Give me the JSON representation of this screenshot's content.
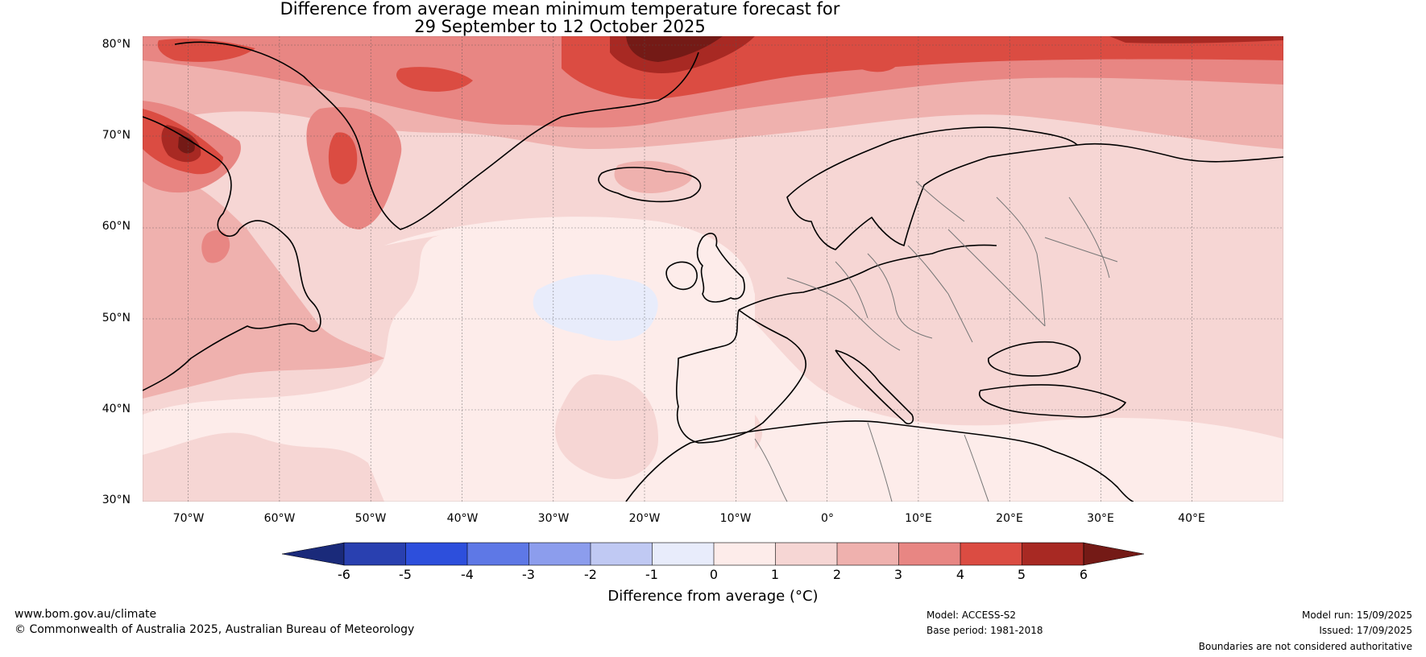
{
  "title": {
    "line1": "Difference from average mean minimum temperature forecast for",
    "line2": "29 September to 12 October 2025"
  },
  "map": {
    "projection": "equirectangular",
    "lon_range": [
      -75,
      50
    ],
    "lat_range": [
      30,
      81
    ],
    "lat_labels": [
      "30°N",
      "40°N",
      "50°N",
      "60°N",
      "70°N",
      "80°N"
    ],
    "lon_labels": [
      "70°W",
      "60°W",
      "50°W",
      "40°W",
      "30°W",
      "20°W",
      "10°W",
      "0°",
      "10°E",
      "20°E",
      "30°E",
      "40°E"
    ],
    "gridlines": true
  },
  "colorbar": {
    "ticks": [
      "-6",
      "-5",
      "-4",
      "-3",
      "-2",
      "-1",
      "0",
      "1",
      "2",
      "3",
      "4",
      "5",
      "6"
    ],
    "label": "Difference from average (°C)",
    "colors": {
      "lt_-6": "#1a2a7a",
      "-6_-5": "#2940b0",
      "-5_-4": "#2d4fdc",
      "-4_-3": "#5e78e6",
      "-3_-2": "#8c9ded",
      "-2_-1": "#c0c9f3",
      "-1_0": "#e8ecfb",
      "0_1": "#fdecea",
      "1_2": "#f6d6d4",
      "2_3": "#efb1ae",
      "3_4": "#e88683",
      "4_5": "#db4c42",
      "5_6": "#a82923",
      "gt_6": "#741a16"
    }
  },
  "footer": {
    "website": "www.bom.gov.au/climate",
    "copyright": "© Commonwealth of Australia 2025, Australian Bureau of Meteorology",
    "model": "Model: ACCESS-S2",
    "base_period": "Base period: 1981-2018",
    "model_run": "Model run: 15/09/2025",
    "issued": "Issued: 17/09/2025",
    "disclaimer": "Boundaries are not considered authoritative"
  }
}
